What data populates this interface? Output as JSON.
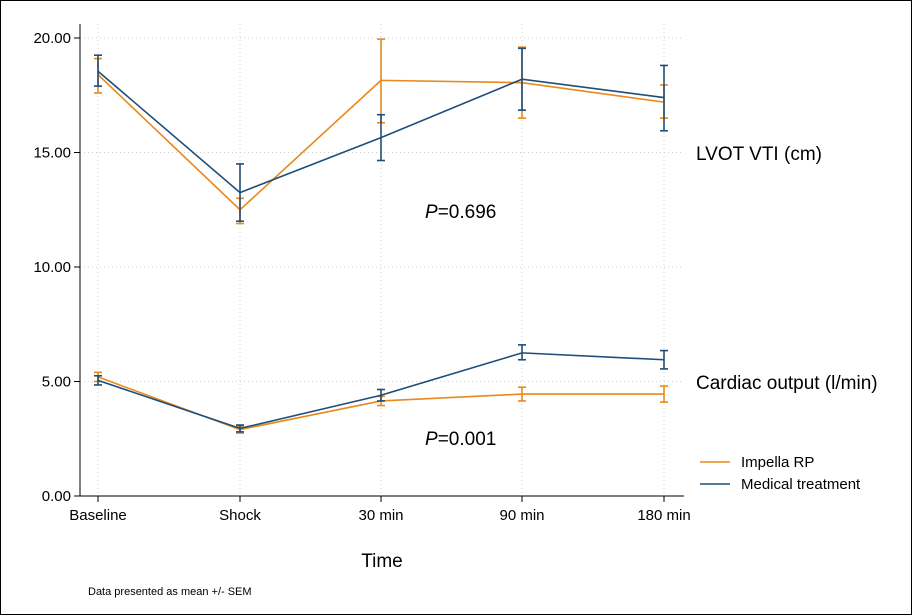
{
  "chart_data": {
    "type": "line",
    "xlabel": "Time",
    "categories": [
      "Baseline",
      "Shock",
      "30 min",
      "90 min",
      "180 min"
    ],
    "ylim": [
      0,
      20
    ],
    "yticks": [
      "0.00",
      "5.00",
      "10.00",
      "15.00",
      "20.00"
    ],
    "ytick_values": [
      0,
      5,
      10,
      15,
      20
    ],
    "grid": true,
    "legend_position": "bottom-right",
    "colors": {
      "impella": "#E8891B",
      "medical": "#1F4E79"
    },
    "groups": [
      {
        "label": "LVOT VTI (cm)",
        "p_prefix": "P",
        "p_value": "=0.696",
        "series": [
          {
            "name": "Impella RP",
            "values": [
              18.4,
              12.5,
              18.15,
              18.05,
              17.2
            ],
            "err_low": [
              17.6,
              11.9,
              16.3,
              16.5,
              16.5
            ],
            "err_high": [
              19.1,
              13.0,
              19.95,
              19.6,
              17.95
            ]
          },
          {
            "name": "Medical treatment",
            "values": [
              18.55,
              13.25,
              15.65,
              18.2,
              17.4
            ],
            "err_low": [
              17.9,
              12.0,
              14.65,
              16.85,
              15.95
            ],
            "err_high": [
              19.25,
              14.5,
              16.65,
              19.55,
              18.8
            ]
          }
        ]
      },
      {
        "label": "Cardiac output (l/min)",
        "p_prefix": "P",
        "p_value": "=0.001",
        "series": [
          {
            "name": "Impella RP",
            "values": [
              5.2,
              2.9,
              4.15,
              4.45,
              4.45
            ],
            "err_low": [
              5.0,
              2.75,
              3.95,
              4.15,
              4.1
            ],
            "err_high": [
              5.4,
              3.05,
              4.35,
              4.75,
              4.8
            ]
          },
          {
            "name": "Medical treatment",
            "values": [
              5.05,
              2.95,
              4.4,
              6.25,
              5.95
            ],
            "err_low": [
              4.85,
              2.8,
              4.15,
              5.95,
              5.55
            ],
            "err_high": [
              5.25,
              3.1,
              4.65,
              6.6,
              6.35
            ]
          }
        ]
      }
    ],
    "legend": [
      "Impella RP",
      "Medical treatment"
    ],
    "footnote": "Data presented as mean +/- SEM"
  }
}
